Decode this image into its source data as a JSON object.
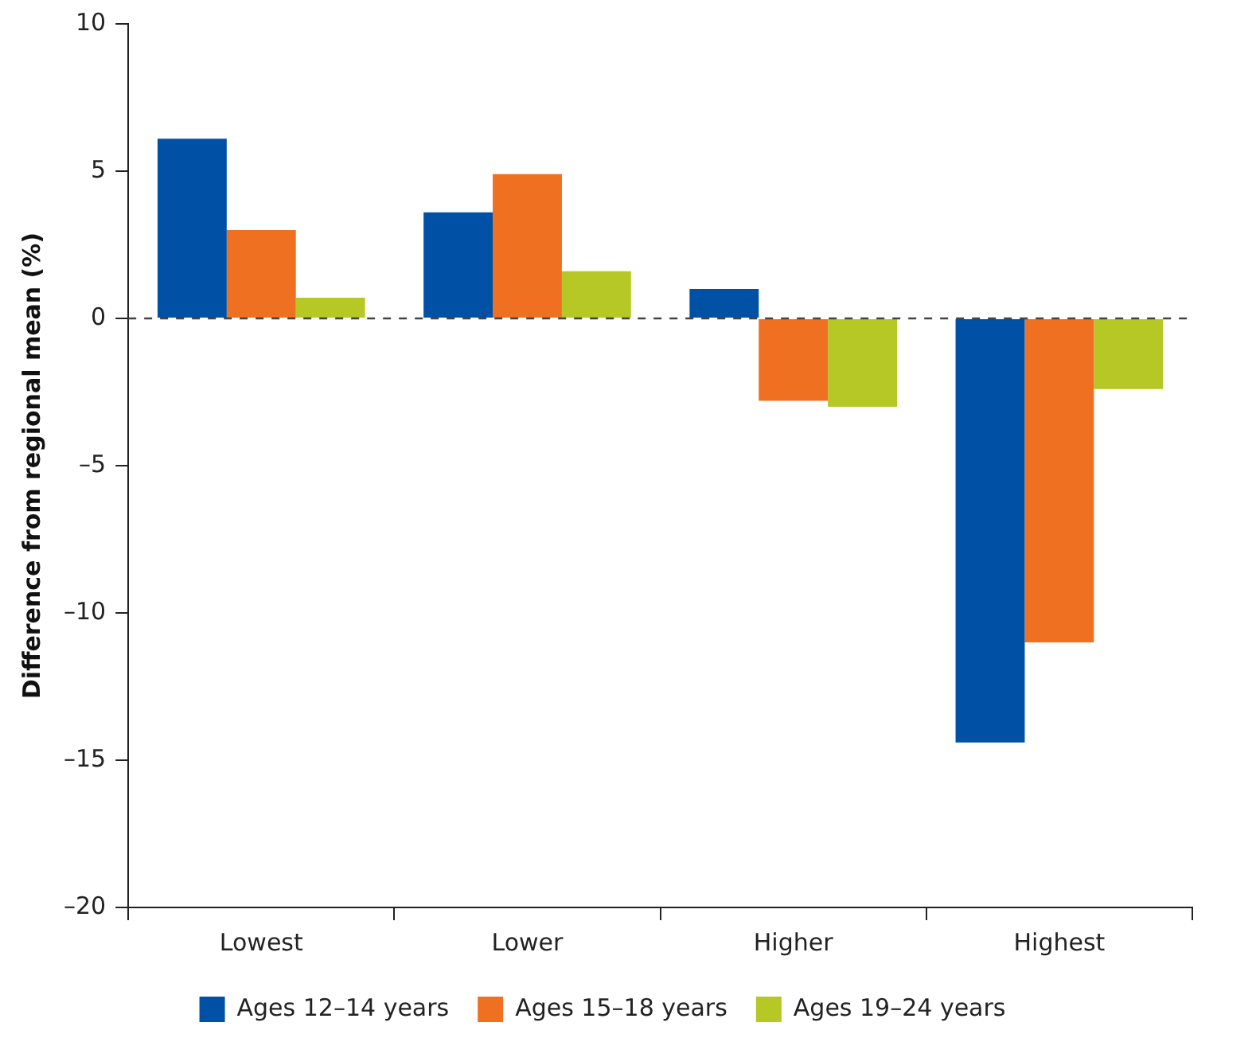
{
  "chart_data": {
    "type": "bar",
    "ylabel": "Difference from regional mean (%)",
    "categories": [
      "Lowest",
      "Lower",
      "Higher",
      "Highest"
    ],
    "series": [
      {
        "name": "Ages 12–14 years",
        "color": "#0050a5",
        "values": [
          6.1,
          3.6,
          1.0,
          -14.4
        ]
      },
      {
        "name": "Ages 15–18 years",
        "color": "#f07022",
        "values": [
          3.0,
          4.9,
          -2.8,
          -11.0
        ]
      },
      {
        "name": "Ages 19–24 years",
        "color": "#b5c826",
        "values": [
          0.7,
          1.6,
          -3.0,
          -2.4
        ]
      }
    ],
    "ylim": [
      -20,
      10
    ],
    "yticks": [
      {
        "value": -20,
        "label": "–20"
      },
      {
        "value": -15,
        "label": "–15"
      },
      {
        "value": -10,
        "label": "–10"
      },
      {
        "value": -5,
        "label": "–5"
      },
      0,
      5,
      10
    ],
    "ref_lines": [
      {
        "axis": "y",
        "value": 0,
        "line_style": "dashed",
        "color": "#444444"
      }
    ],
    "grid": false,
    "legend": "bottom"
  }
}
